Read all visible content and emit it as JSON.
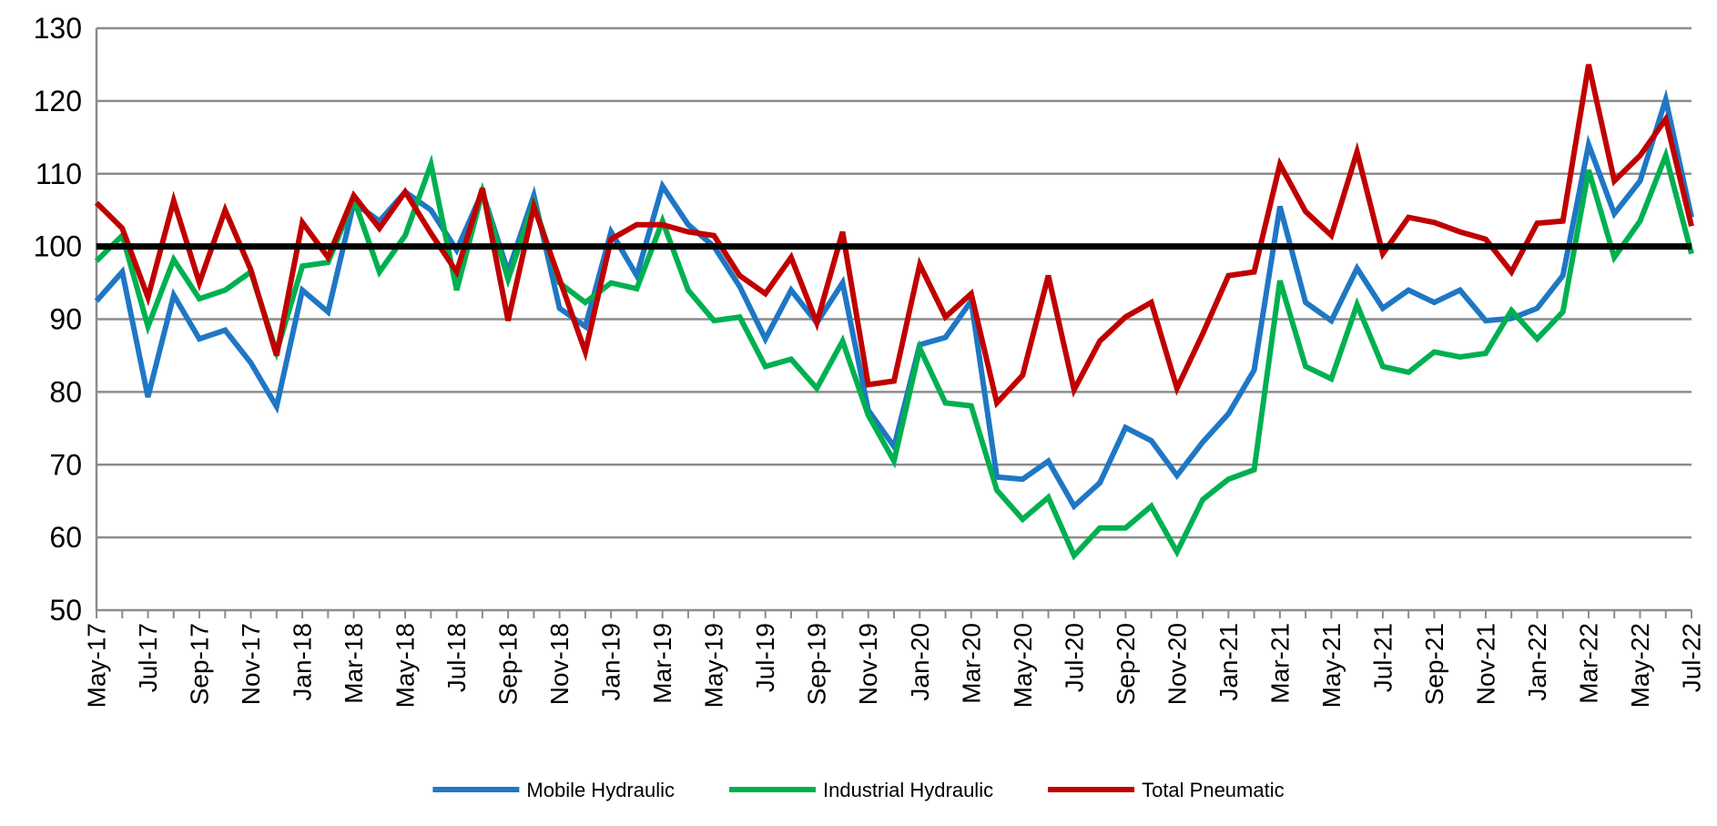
{
  "chart_data": {
    "type": "line",
    "title": "",
    "xlabel": "",
    "ylabel": "",
    "ylim": [
      50,
      130
    ],
    "yticks": [
      50,
      60,
      70,
      80,
      90,
      100,
      110,
      120,
      130
    ],
    "reference_line": 100,
    "grid": true,
    "legend_position": "bottom",
    "x": [
      "May-17",
      "Jun-17",
      "Jul-17",
      "Aug-17",
      "Sep-17",
      "Oct-17",
      "Nov-17",
      "Dec-17",
      "Jan-18",
      "Feb-18",
      "Mar-18",
      "Apr-18",
      "May-18",
      "Jun-18",
      "Jul-18",
      "Aug-18",
      "Sep-18",
      "Oct-18",
      "Nov-18",
      "Dec-18",
      "Jan-19",
      "Feb-19",
      "Mar-19",
      "Apr-19",
      "May-19",
      "Jun-19",
      "Jul-19",
      "Aug-19",
      "Sep-19",
      "Oct-19",
      "Nov-19",
      "Dec-19",
      "Jan-20",
      "Feb-20",
      "Mar-20",
      "Apr-20",
      "May-20",
      "Jun-20",
      "Jul-20",
      "Aug-20",
      "Sep-20",
      "Oct-20",
      "Nov-20",
      "Dec-20",
      "Jan-21",
      "Feb-21",
      "Mar-21",
      "Apr-21",
      "May-21",
      "Jun-21",
      "Jul-21",
      "Aug-21",
      "Sep-21",
      "Oct-21",
      "Nov-21",
      "Dec-21",
      "Jan-22",
      "Feb-22",
      "Mar-22",
      "Apr-22",
      "May-22",
      "Jun-22",
      "Jul-22"
    ],
    "xtick_labels": [
      "May-17",
      "Jul-17",
      "Sep-17",
      "Nov-17",
      "Jan-18",
      "Mar-18",
      "May-18",
      "Jul-18",
      "Sep-18",
      "Nov-18",
      "Jan-19",
      "Mar-19",
      "May-19",
      "Jul-19",
      "Sep-19",
      "Nov-19",
      "Jan-20",
      "Mar-20",
      "May-20",
      "Jul-20",
      "Sep-20",
      "Nov-20",
      "Jan-21",
      "Mar-21",
      "May-21",
      "Jul-21",
      "Sep-21",
      "Nov-21",
      "Jan-22",
      "Mar-22",
      "May-22",
      "Jul-22"
    ],
    "series": [
      {
        "name": "Mobile Hydraulic",
        "color": "#1f77c4",
        "values": [
          92.5,
          96.5,
          79.3,
          93.3,
          87.3,
          88.5,
          84,
          78,
          94,
          91,
          106,
          103.5,
          107.5,
          105,
          99.5,
          107.5,
          96.5,
          107,
          91.5,
          89,
          102,
          96,
          108.3,
          103,
          100,
          94.5,
          87.3,
          94,
          89.5,
          95,
          77.5,
          72.5,
          86.5,
          87.5,
          92.5,
          68.3,
          68,
          70.5,
          64.3,
          67.5,
          75.1,
          73.3,
          68.5,
          73.1,
          77,
          83,
          105.5,
          92.3,
          89.8,
          97,
          91.5,
          94,
          92.3,
          94,
          89.8,
          90.1,
          91.5,
          96,
          114,
          104.5,
          109,
          120.2,
          104
        ]
      },
      {
        "name": "Industrial Hydraulic",
        "color": "#00b050",
        "values": [
          98,
          101.5,
          89,
          98.2,
          92.8,
          94,
          96.5,
          85.5,
          97.3,
          97.8,
          106.5,
          96.5,
          101.5,
          111.3,
          94,
          107.5,
          95.5,
          106,
          95,
          92.3,
          95,
          94.2,
          103.5,
          94,
          89.8,
          90.3,
          83.5,
          84.5,
          80.5,
          87,
          76.8,
          70.5,
          86,
          78.5,
          78.1,
          66.5,
          62.5,
          65.5,
          57.5,
          61.3,
          61.3,
          64.3,
          58,
          65.2,
          68,
          69.3,
          95.3,
          83.5,
          81.8,
          92,
          83.5,
          82.7,
          85.5,
          84.8,
          85.3,
          91.2,
          87.3,
          91,
          110.5,
          98.5,
          103.5,
          112.5,
          99
        ]
      },
      {
        "name": "Total Pneumatic",
        "color": "#c00000",
        "values": [
          106,
          102.5,
          93,
          106.3,
          95,
          105,
          96.8,
          85,
          103.3,
          98.5,
          107,
          102.5,
          107.5,
          101.8,
          96.5,
          108,
          89.8,
          105.5,
          95.5,
          85.5,
          101,
          103,
          103,
          102,
          101.5,
          96,
          93.5,
          98.5,
          89.5,
          102,
          81,
          81.5,
          97.5,
          90.3,
          93.5,
          78.5,
          82.3,
          96,
          80.3,
          87,
          90.3,
          92.3,
          80.5,
          88,
          96,
          96.5,
          111.3,
          104.8,
          101.5,
          113,
          99,
          104,
          103.3,
          102,
          101,
          96.5,
          103.2,
          103.5,
          125,
          109,
          112.5,
          117.5,
          102.8
        ]
      }
    ]
  }
}
